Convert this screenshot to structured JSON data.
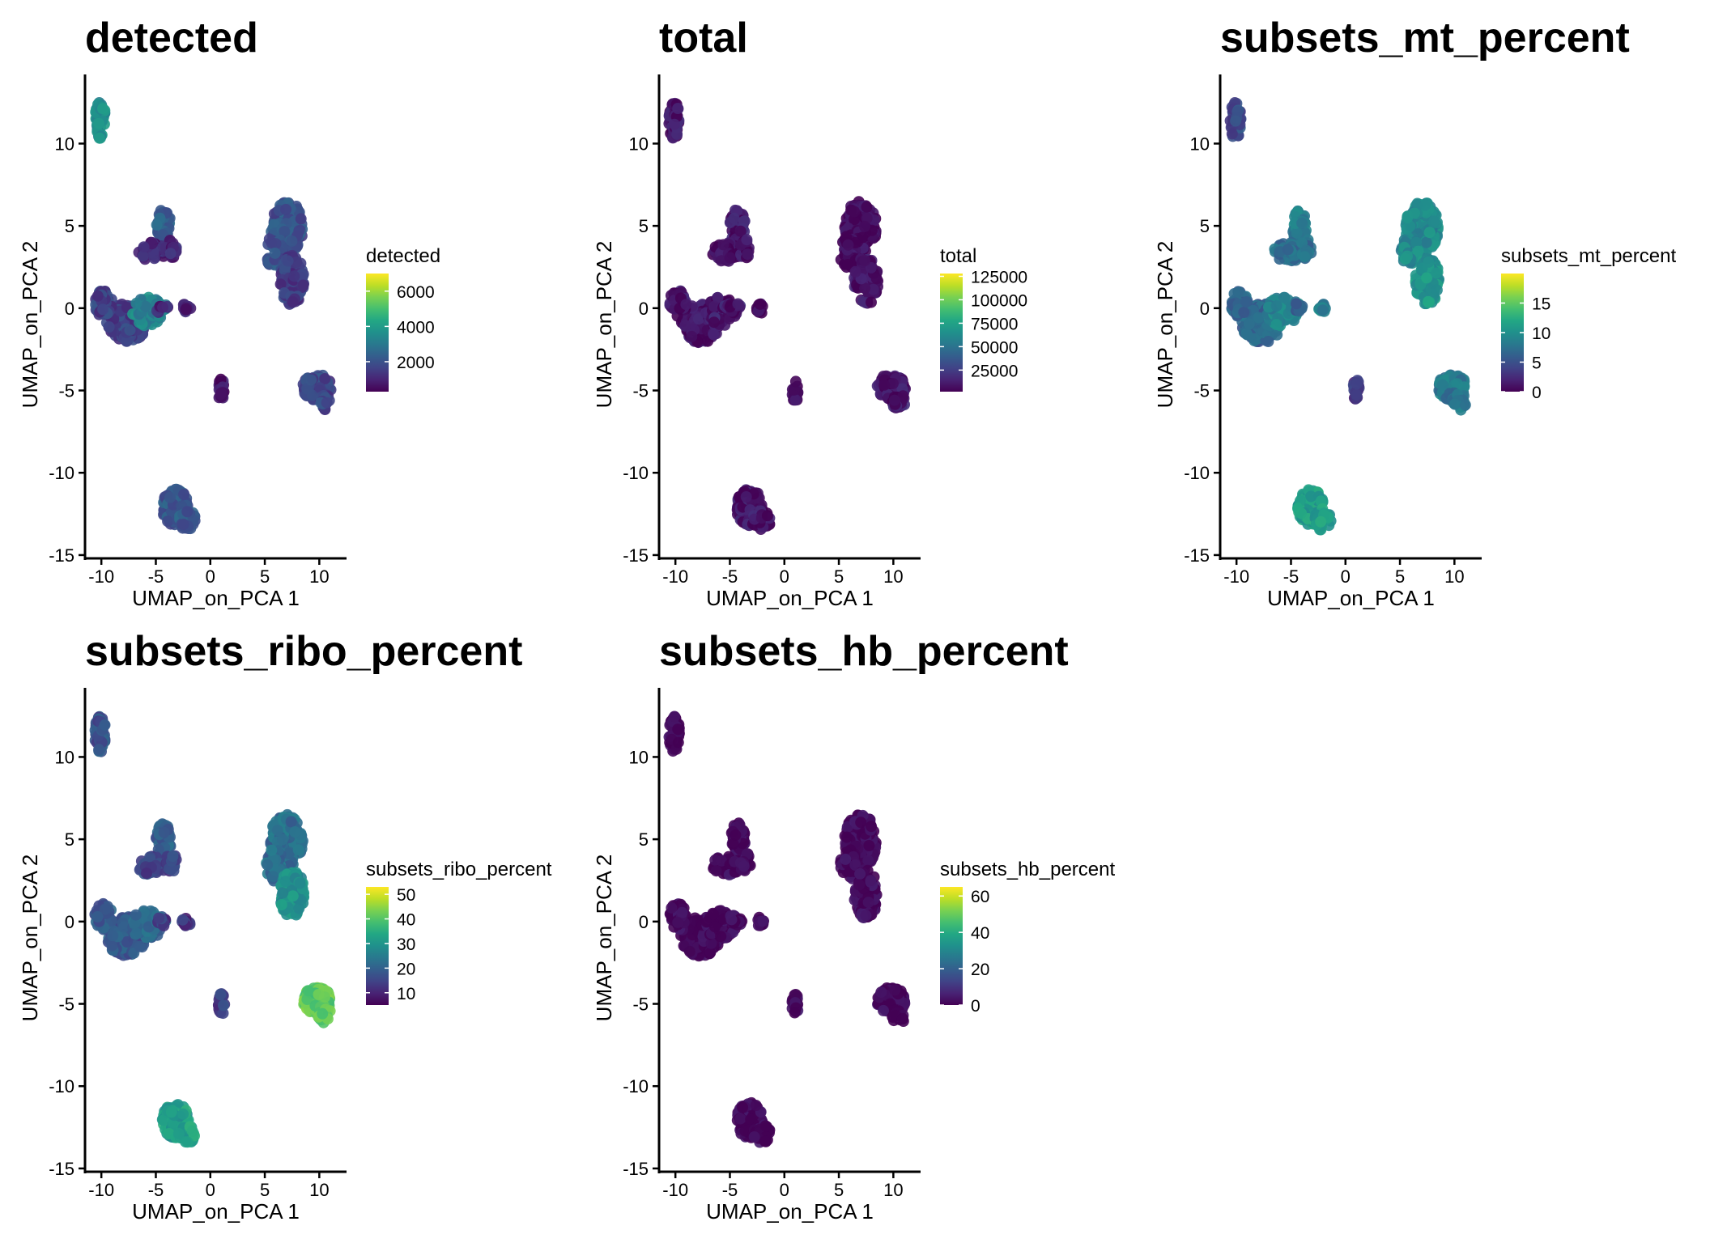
{
  "chart_data": [
    {
      "type": "scatter",
      "title": "detected",
      "xlabel": "UMAP_on_PCA 1",
      "ylabel": "UMAP_on_PCA 2",
      "xlim": [
        -11.5,
        12.5
      ],
      "ylim": [
        -15.2,
        14.2
      ],
      "xticks": [
        -10,
        -5,
        0,
        5,
        10
      ],
      "yticks": [
        -15,
        -10,
        -5,
        0,
        5,
        10
      ],
      "legend": {
        "title": "detected",
        "min": 300,
        "max": 7000,
        "ticks": [
          2000,
          4000,
          6000
        ],
        "palette": "viridis",
        "position": "right"
      },
      "clusters": [
        {
          "id": "A",
          "value": 3600
        },
        {
          "id": "B",
          "value": 2300
        },
        {
          "id": "B-lower",
          "value": 1000
        },
        {
          "id": "C",
          "value": 1600
        },
        {
          "id": "C2",
          "value": 3300
        },
        {
          "id": "D",
          "value": 2000
        },
        {
          "id": "D-lower",
          "value": 1500
        },
        {
          "id": "E",
          "value": 900
        },
        {
          "id": "E2",
          "value": 900
        },
        {
          "id": "F",
          "value": 700
        },
        {
          "id": "G",
          "value": 1700
        },
        {
          "id": "H",
          "value": 2100
        }
      ],
      "grid": false
    },
    {
      "type": "scatter",
      "title": "total",
      "xlabel": "UMAP_on_PCA 1",
      "ylabel": "UMAP_on_PCA 2",
      "xlim": [
        -11.5,
        12.5
      ],
      "ylim": [
        -15.2,
        14.2
      ],
      "xticks": [
        -10,
        -5,
        0,
        5,
        10
      ],
      "yticks": [
        -15,
        -10,
        -5,
        0,
        5,
        10
      ],
      "legend": {
        "title": "total",
        "min": 2000,
        "max": 128000,
        "ticks": [
          25000,
          50000,
          75000,
          100000,
          125000
        ],
        "palette": "viridis",
        "position": "right"
      },
      "clusters": [
        {
          "id": "A",
          "value": 9000
        },
        {
          "id": "B",
          "value": 10000
        },
        {
          "id": "B-lower",
          "value": 6000
        },
        {
          "id": "C",
          "value": 8000
        },
        {
          "id": "C2",
          "value": 11000
        },
        {
          "id": "D",
          "value": 4000
        },
        {
          "id": "D-lower",
          "value": 7000
        },
        {
          "id": "E",
          "value": 3000
        },
        {
          "id": "E2",
          "value": 3000
        },
        {
          "id": "F",
          "value": 3000
        },
        {
          "id": "G",
          "value": 9000
        },
        {
          "id": "H",
          "value": 9000
        }
      ],
      "grid": false
    },
    {
      "type": "scatter",
      "title": "subsets_mt_percent",
      "xlabel": "UMAP_on_PCA 1",
      "ylabel": "UMAP_on_PCA 2",
      "xlim": [
        -11.5,
        12.5
      ],
      "ylim": [
        -15.2,
        14.2
      ],
      "xticks": [
        -10,
        -5,
        0,
        5,
        10
      ],
      "yticks": [
        -15,
        -10,
        -5,
        0,
        5,
        10
      ],
      "legend": {
        "title": "subsets_mt_percent",
        "min": 0,
        "max": 20,
        "ticks": [
          0,
          5,
          10,
          15
        ],
        "palette": "viridis",
        "position": "right"
      },
      "clusters": [
        {
          "id": "A",
          "value": 4.5
        },
        {
          "id": "B",
          "value": 8.5
        },
        {
          "id": "B-lower",
          "value": 7
        },
        {
          "id": "C",
          "value": 6.5
        },
        {
          "id": "C2",
          "value": 9
        },
        {
          "id": "D",
          "value": 9.5
        },
        {
          "id": "D-lower",
          "value": 10.5
        },
        {
          "id": "E",
          "value": 9
        },
        {
          "id": "E2",
          "value": 6
        },
        {
          "id": "F",
          "value": 3
        },
        {
          "id": "G",
          "value": 8
        },
        {
          "id": "H",
          "value": 11
        }
      ],
      "grid": false
    },
    {
      "type": "scatter",
      "title": "subsets_ribo_percent",
      "xlabel": "UMAP_on_PCA 1",
      "ylabel": "UMAP_on_PCA 2",
      "xlim": [
        -11.5,
        12.5
      ],
      "ylim": [
        -15.2,
        14.2
      ],
      "xticks": [
        -10,
        -5,
        0,
        5,
        10
      ],
      "yticks": [
        -15,
        -10,
        -5,
        0,
        5,
        10
      ],
      "legend": {
        "title": "subsets_ribo_percent",
        "min": 5,
        "max": 53,
        "ticks": [
          10,
          20,
          30,
          40,
          50
        ],
        "palette": "viridis",
        "position": "right"
      },
      "clusters": [
        {
          "id": "A",
          "value": 17
        },
        {
          "id": "B",
          "value": 20
        },
        {
          "id": "B-lower",
          "value": 15
        },
        {
          "id": "C",
          "value": 18
        },
        {
          "id": "C2",
          "value": 21
        },
        {
          "id": "D",
          "value": 22
        },
        {
          "id": "D-lower",
          "value": 29
        },
        {
          "id": "E",
          "value": 12
        },
        {
          "id": "E2",
          "value": 13
        },
        {
          "id": "F",
          "value": 14
        },
        {
          "id": "G",
          "value": 41
        },
        {
          "id": "H",
          "value": 32
        }
      ],
      "grid": false
    },
    {
      "type": "scatter",
      "title": "subsets_hb_percent",
      "xlabel": "UMAP_on_PCA 1",
      "ylabel": "UMAP_on_PCA 2",
      "xlim": [
        -11.5,
        12.5
      ],
      "ylim": [
        -15.2,
        14.2
      ],
      "xticks": [
        -10,
        -5,
        0,
        5,
        10
      ],
      "yticks": [
        -15,
        -10,
        -5,
        0,
        5,
        10
      ],
      "legend": {
        "title": "subsets_hb_percent",
        "min": 0,
        "max": 65,
        "ticks": [
          0,
          20,
          40,
          60
        ],
        "palette": "viridis",
        "position": "right"
      },
      "clusters": [
        {
          "id": "A",
          "value": 0.5
        },
        {
          "id": "B",
          "value": 0.5
        },
        {
          "id": "B-lower",
          "value": 0.3
        },
        {
          "id": "C",
          "value": 0.5
        },
        {
          "id": "C2",
          "value": 0.8
        },
        {
          "id": "D",
          "value": 0.3
        },
        {
          "id": "D-lower",
          "value": 0.5
        },
        {
          "id": "E",
          "value": 0.3
        },
        {
          "id": "E2",
          "value": 0.3
        },
        {
          "id": "F",
          "value": 0.3
        },
        {
          "id": "G",
          "value": 0.3
        },
        {
          "id": "H",
          "value": 0.5
        }
      ],
      "grid": false
    }
  ]
}
